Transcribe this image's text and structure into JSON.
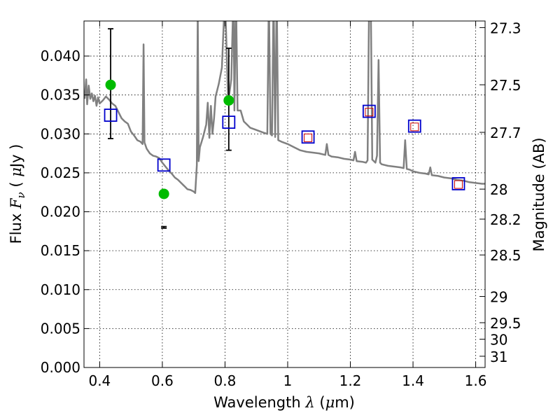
{
  "chart_data": {
    "type": "scatter",
    "xlabel_prefix": "Wavelength",
    "xlabel_symbol": "λ",
    "xlabel_unit_open": " (",
    "xlabel_unit_mu": "μ",
    "xlabel_unit_rest": "m)",
    "ylabel_prefix": "Flux",
    "ylabel_symbol": "F",
    "ylabel_subscript": "ν",
    "ylabel_unit_open": "( ",
    "ylabel_unit_mu": "μ",
    "ylabel_unit_rest": "Jy )",
    "y2label": "Magnitude (AB)",
    "xlim": [
      0.35,
      1.63
    ],
    "ylim": [
      0.0,
      0.0445
    ],
    "grid": true,
    "x_ticks": [
      {
        "value": 0.4,
        "label": "0.4"
      },
      {
        "value": 0.6,
        "label": "0.6"
      },
      {
        "value": 0.8,
        "label": "0.8"
      },
      {
        "value": 1.0,
        "label": "1"
      },
      {
        "value": 1.2,
        "label": "1.2"
      },
      {
        "value": 1.4,
        "label": "1.4"
      },
      {
        "value": 1.6,
        "label": "1.6"
      }
    ],
    "y_ticks": [
      {
        "value": 0.0,
        "label": "0.000"
      },
      {
        "value": 0.005,
        "label": "0.005"
      },
      {
        "value": 0.01,
        "label": "0.010"
      },
      {
        "value": 0.015,
        "label": "0.015"
      },
      {
        "value": 0.02,
        "label": "0.020"
      },
      {
        "value": 0.025,
        "label": "0.025"
      },
      {
        "value": 0.03,
        "label": "0.030"
      },
      {
        "value": 0.035,
        "label": "0.035"
      },
      {
        "value": 0.04,
        "label": "0.040"
      }
    ],
    "y2_ticks": [
      {
        "label": "27.3",
        "mag": 27.3
      },
      {
        "label": "27.5",
        "mag": 27.5
      },
      {
        "label": "27.7",
        "mag": 27.7
      },
      {
        "label": "28",
        "mag": 28.0
      },
      {
        "label": "28.2",
        "mag": 28.2
      },
      {
        "label": "28.5",
        "mag": 28.5
      },
      {
        "label": "29",
        "mag": 29.0
      },
      {
        "label": "29.5",
        "mag": 29.5
      },
      {
        "label": "30",
        "mag": 30.0
      },
      {
        "label": "31",
        "mag": 31.0
      }
    ],
    "model_spectrum": {
      "color": "#808080",
      "x": [
        0.352,
        0.357,
        0.36,
        0.365,
        0.37,
        0.375,
        0.38,
        0.385,
        0.39,
        0.395,
        0.4,
        0.41,
        0.42,
        0.43,
        0.44,
        0.45,
        0.46,
        0.47,
        0.48,
        0.49,
        0.5,
        0.51,
        0.52,
        0.53,
        0.537,
        0.54,
        0.543,
        0.55,
        0.56,
        0.57,
        0.58,
        0.59,
        0.6,
        0.61,
        0.62,
        0.63,
        0.64,
        0.65,
        0.66,
        0.67,
        0.68,
        0.69,
        0.7,
        0.705,
        0.71,
        0.713,
        0.716,
        0.72,
        0.73,
        0.74,
        0.745,
        0.75,
        0.755,
        0.76,
        0.765,
        0.77,
        0.78,
        0.79,
        0.8,
        0.81,
        0.82,
        0.827,
        0.83,
        0.835,
        0.84,
        0.85,
        0.86,
        0.87,
        0.88,
        0.9,
        0.92,
        0.935,
        0.94,
        0.945,
        0.95,
        0.955,
        0.96,
        0.965,
        0.97,
        0.98,
        1.0,
        1.02,
        1.04,
        1.06,
        1.08,
        1.1,
        1.12,
        1.125,
        1.13,
        1.14,
        1.16,
        1.18,
        1.2,
        1.21,
        1.215,
        1.22,
        1.24,
        1.25,
        1.255,
        1.26,
        1.265,
        1.27,
        1.28,
        1.285,
        1.29,
        1.295,
        1.3,
        1.32,
        1.34,
        1.36,
        1.37,
        1.375,
        1.38,
        1.39,
        1.4,
        1.42,
        1.44,
        1.45,
        1.455,
        1.46,
        1.48,
        1.5,
        1.52,
        1.54,
        1.56,
        1.58,
        1.6,
        1.62,
        1.63
      ],
      "y": [
        0.0345,
        0.037,
        0.0338,
        0.0362,
        0.0345,
        0.0352,
        0.0342,
        0.0349,
        0.0336,
        0.0347,
        0.0339,
        0.0343,
        0.0348,
        0.0344,
        0.0339,
        0.0336,
        0.0328,
        0.032,
        0.0316,
        0.0313,
        0.0303,
        0.0298,
        0.0292,
        0.029,
        0.0287,
        0.0415,
        0.0289,
        0.0281,
        0.0275,
        0.0272,
        0.0271,
        0.0269,
        0.0263,
        0.0258,
        0.0253,
        0.0249,
        0.0244,
        0.0241,
        0.0237,
        0.0233,
        0.0229,
        0.0228,
        0.0226,
        0.0224,
        0.026,
        0.046,
        0.0265,
        0.0283,
        0.0296,
        0.0312,
        0.034,
        0.0295,
        0.0336,
        0.03,
        0.032,
        0.0348,
        0.0364,
        0.0385,
        0.048,
        0.034,
        0.037,
        0.048,
        0.033,
        0.048,
        0.033,
        0.033,
        0.0316,
        0.0312,
        0.0308,
        0.0305,
        0.0302,
        0.03,
        0.048,
        0.03,
        0.0298,
        0.048,
        0.0296,
        0.048,
        0.0292,
        0.029,
        0.0287,
        0.0283,
        0.0279,
        0.0277,
        0.0276,
        0.0275,
        0.0273,
        0.0287,
        0.0273,
        0.0271,
        0.027,
        0.0268,
        0.0267,
        0.0266,
        0.0277,
        0.0265,
        0.0264,
        0.0263,
        0.0266,
        0.048,
        0.048,
        0.0267,
        0.0263,
        0.0272,
        0.0395,
        0.0263,
        0.0261,
        0.0259,
        0.0258,
        0.0257,
        0.0256,
        0.0292,
        0.0255,
        0.0254,
        0.0252,
        0.025,
        0.0249,
        0.0248,
        0.0257,
        0.0247,
        0.0246,
        0.0244,
        0.0243,
        0.0241,
        0.024,
        0.0238,
        0.0237,
        0.0236,
        0.0236
      ]
    },
    "model_photometry": {
      "color": "#0000cc",
      "x": [
        0.435,
        0.605,
        0.812,
        1.065,
        1.26,
        1.405,
        1.545
      ],
      "y": [
        0.0324,
        0.026,
        0.0315,
        0.0296,
        0.0329,
        0.031,
        0.0236
      ]
    },
    "inner_markers": {
      "color": "#cc0000",
      "x": [
        1.065,
        1.26,
        1.405,
        1.545
      ],
      "y": [
        0.0295,
        0.0328,
        0.0309,
        0.0235
      ]
    },
    "observed": {
      "color": "#00bb00",
      "x": [
        0.435,
        0.605,
        0.812
      ],
      "y": [
        0.0363,
        0.0223,
        0.0343
      ],
      "y_err_low": [
        0.0294,
        0.0179,
        0.0279
      ],
      "y_err_high": [
        0.0435,
        0.0181,
        0.041
      ]
    }
  }
}
